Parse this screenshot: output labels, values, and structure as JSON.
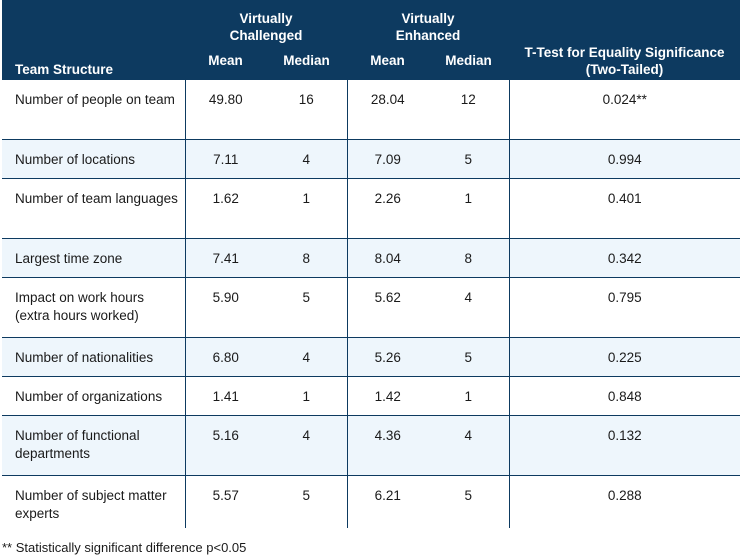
{
  "header": {
    "structure": "Team Structure",
    "group_vc": "Virtually Challenged",
    "group_ve": "Virtually Enhanced",
    "ttest": "T-Test for Equality Significance (Two-Tailed)",
    "mean": "Mean",
    "median": "Median"
  },
  "rows": [
    {
      "label": "Number of people on team",
      "vc_mean": "49.80",
      "vc_median": "16",
      "ve_mean": "28.04",
      "ve_median": "12",
      "ttest": "0.024**"
    },
    {
      "label": "Number of locations",
      "vc_mean": "7.11",
      "vc_median": "4",
      "ve_mean": "7.09",
      "ve_median": "5",
      "ttest": "0.994"
    },
    {
      "label": "Number of team languages",
      "vc_mean": "1.62",
      "vc_median": "1",
      "ve_mean": "2.26",
      "ve_median": "1",
      "ttest": "0.401"
    },
    {
      "label": "Largest time zone",
      "vc_mean": "7.41",
      "vc_median": "8",
      "ve_mean": "8.04",
      "ve_median": "8",
      "ttest": "0.342"
    },
    {
      "label": "Impact on work hours (extra hours worked)",
      "vc_mean": "5.90",
      "vc_median": "5",
      "ve_mean": "5.62",
      "ve_median": "4",
      "ttest": "0.795"
    },
    {
      "label": "Number of nationalities",
      "vc_mean": "6.80",
      "vc_median": "4",
      "ve_mean": "5.26",
      "ve_median": "5",
      "ttest": "0.225"
    },
    {
      "label": "Number of organizations",
      "vc_mean": "1.41",
      "vc_median": "1",
      "ve_mean": "1.42",
      "ve_median": "1",
      "ttest": "0.848"
    },
    {
      "label": "Number of functional departments",
      "vc_mean": "5.16",
      "vc_median": "4",
      "ve_mean": "4.36",
      "ve_median": "4",
      "ttest": "0.132"
    },
    {
      "label": "Number of subject matter experts",
      "vc_mean": "5.57",
      "vc_median": "5",
      "ve_mean": "6.21",
      "ve_median": "5",
      "ttest": "0.288"
    }
  ],
  "footnote": "** Statistically significant difference p<0.05",
  "colors": {
    "header_bg": "#0d3a60",
    "stripe_bg": "#eef6fc"
  }
}
